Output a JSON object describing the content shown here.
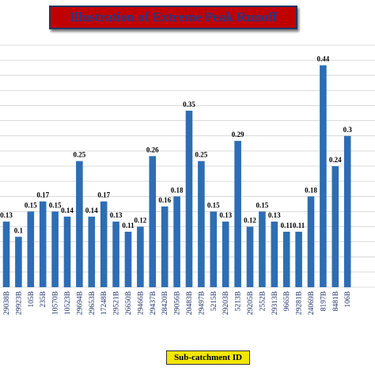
{
  "chart_data": {
    "type": "bar",
    "title": "Illustration of Extreme Peak Runoff",
    "xlabel": "Sub-catchment ID",
    "ylabel": "",
    "ylim": [
      0,
      0.48
    ],
    "grid": true,
    "bar_color": "#2e6db4",
    "title_bg": "#c00000",
    "title_color": "#1f3a8a",
    "xlabel_bg": "#f2e600",
    "categories": [
      "29038B",
      "29923B",
      "105B",
      "235B",
      "10570B",
      "10523B",
      "29694B",
      "29653B",
      "17248B",
      "29521B",
      "26650B",
      "29466B",
      "29437B",
      "28420B",
      "29056B",
      "20483B",
      "29497B",
      "5215B",
      "29203B",
      "5213B",
      "29205B",
      "2552B",
      "29313B",
      "9665B",
      "29281B",
      "24069B",
      "8197B",
      "8481B",
      "106B"
    ],
    "values": [
      0.13,
      0.1,
      0.15,
      0.17,
      0.15,
      0.14,
      0.25,
      0.14,
      0.17,
      0.13,
      0.11,
      0.12,
      0.26,
      0.16,
      0.18,
      0.35,
      0.25,
      0.15,
      0.13,
      0.29,
      0.12,
      0.15,
      0.13,
      0.11,
      0.11,
      0.18,
      0.44,
      0.24,
      0.3
    ],
    "value_labels": [
      "0.13",
      "0.1",
      "0.15",
      "0.17",
      "0.15",
      "0.14",
      "0.25",
      "0.14",
      "0.17",
      "0.13",
      "0.11",
      "0.12",
      "0.26",
      "0.16",
      "0.18",
      "0.35",
      "0.25",
      "0.15",
      "0.13",
      "0.29",
      "0.12",
      "0.15",
      "0.13",
      "0.11",
      "0.11",
      "0.18",
      "0.44",
      "0.24",
      "0.3"
    ]
  }
}
